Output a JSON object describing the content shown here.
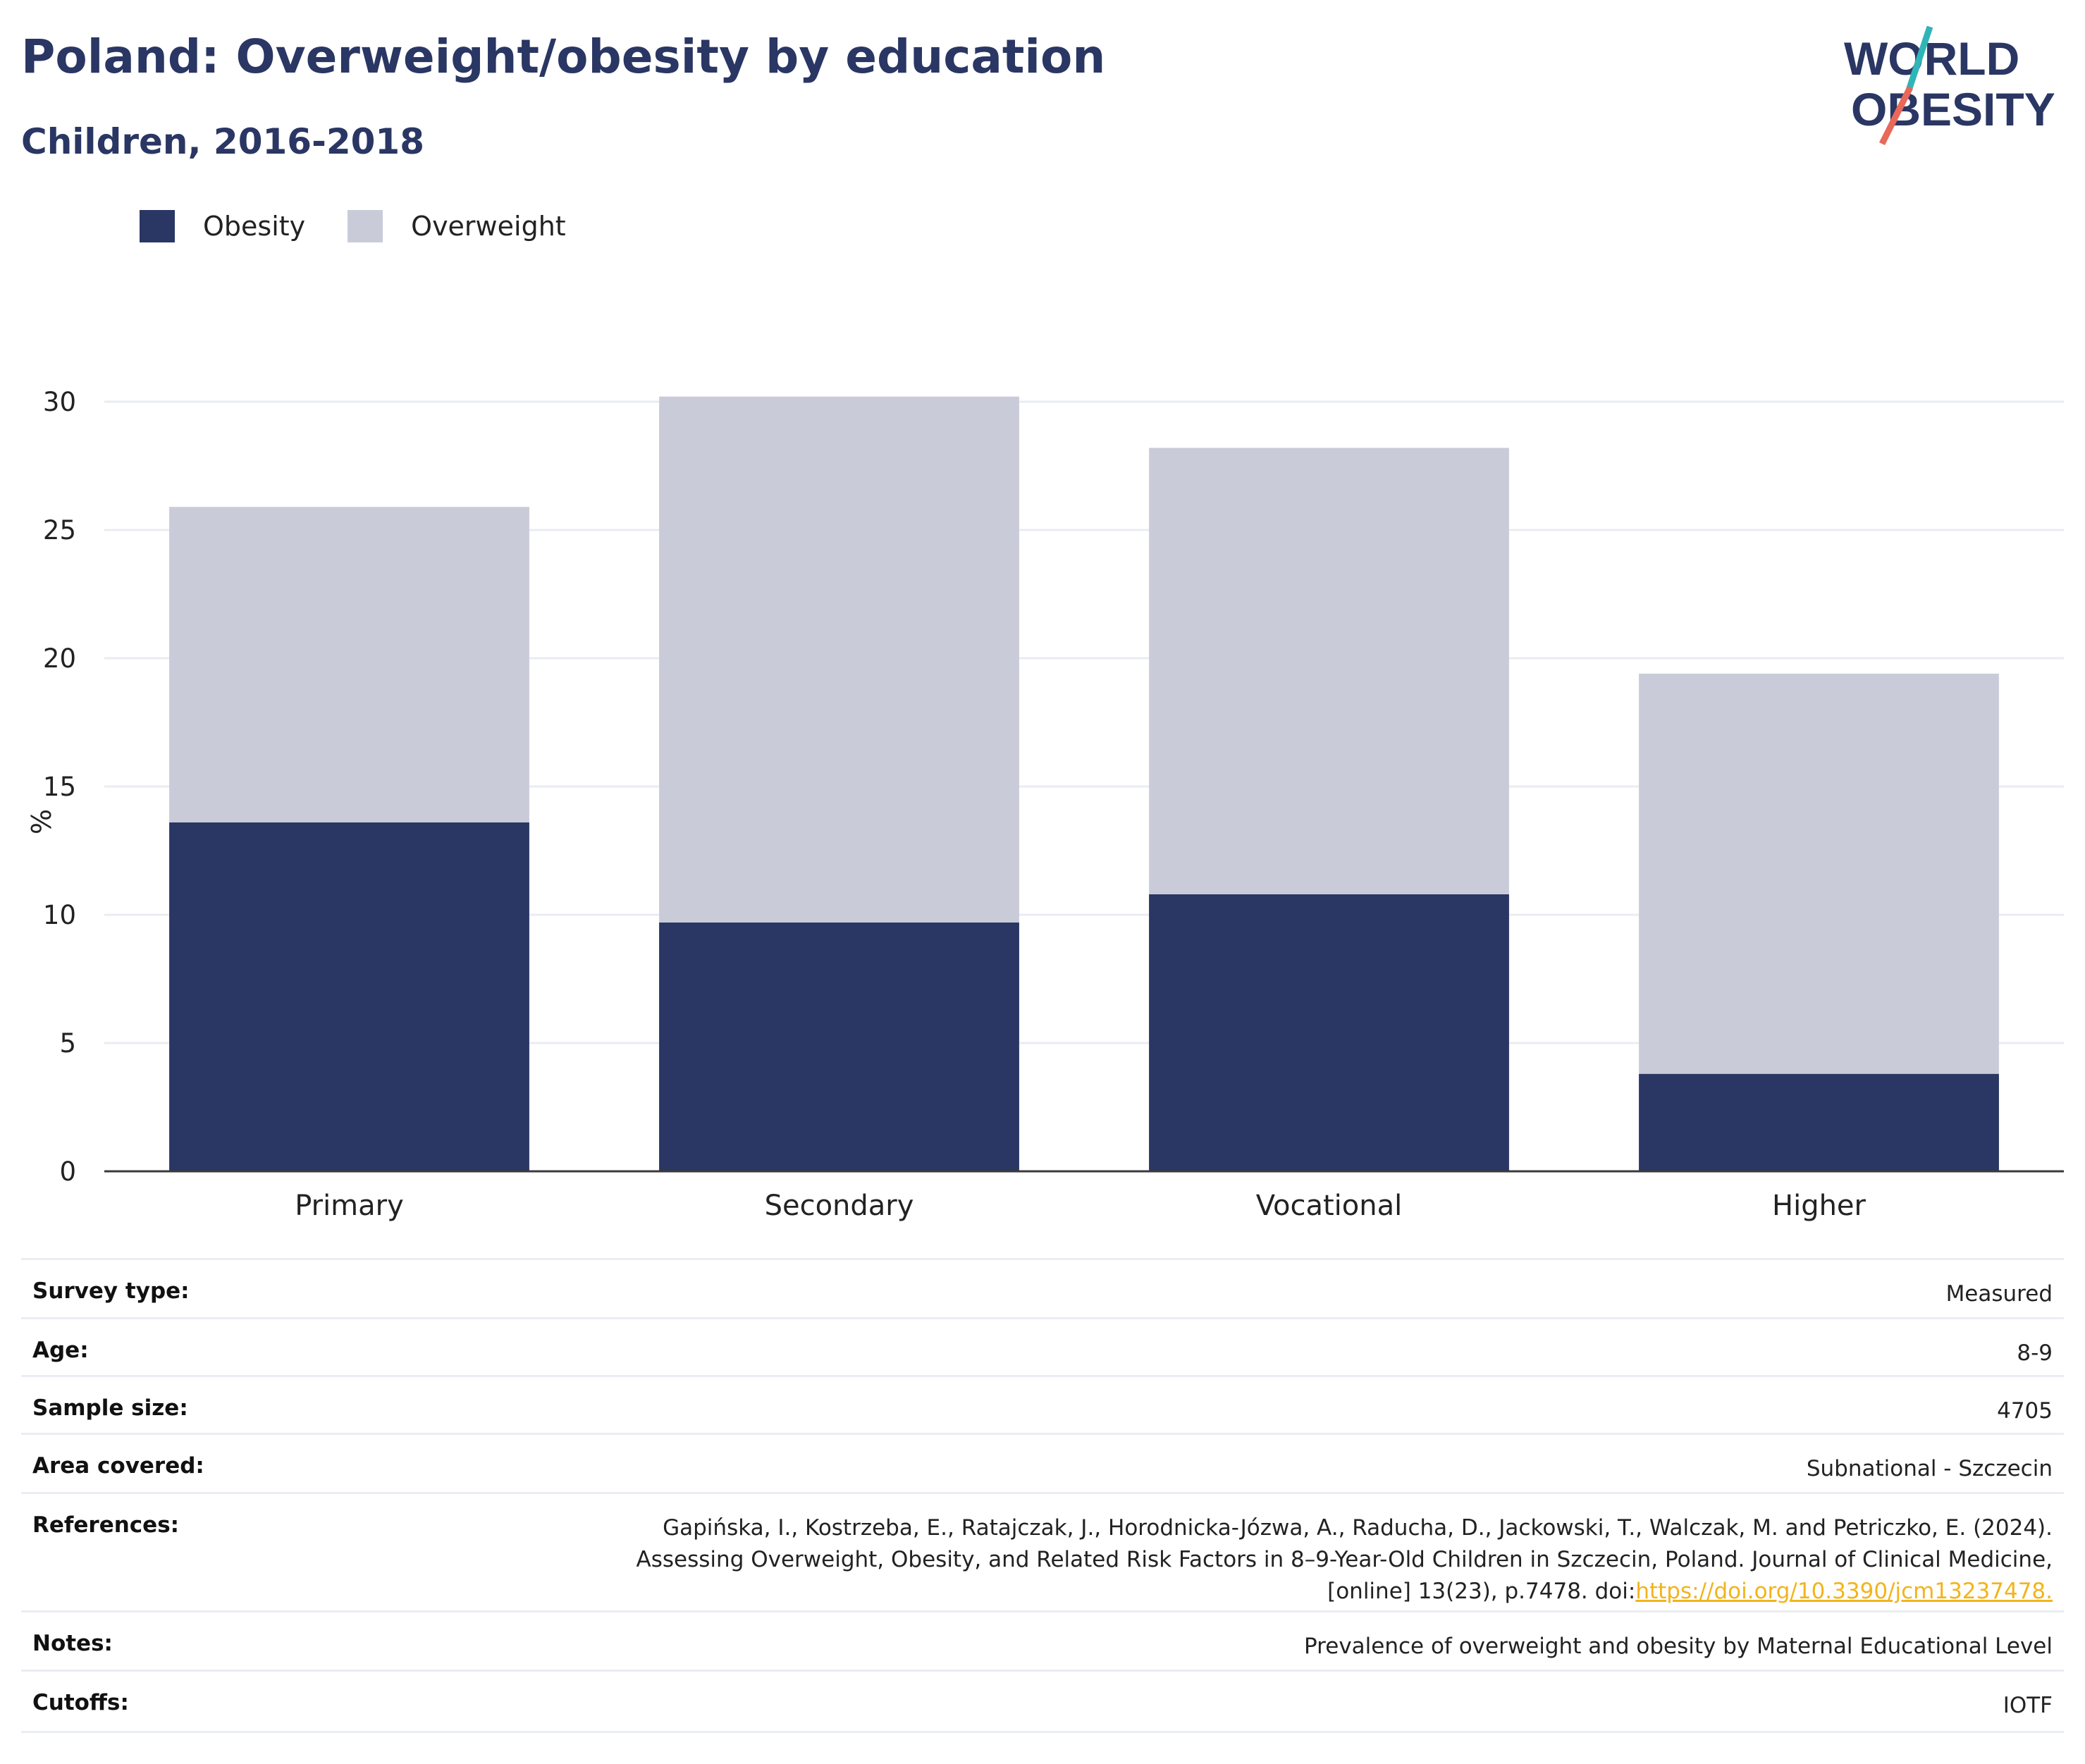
{
  "header": {
    "title": "Poland: Overweight/obesity by education",
    "subtitle": "Children, 2016-2018"
  },
  "logo": {
    "line1": "WORLD",
    "line2": "OBESITY"
  },
  "colors": {
    "obesity": "#2a3663",
    "overweight": "#c9ccd8",
    "title": "#2a3663",
    "link": "#f2b41c",
    "logo_teal": "#2fb5b7",
    "logo_coral": "#e8685a"
  },
  "chart_data": {
    "type": "bar",
    "stacked": true,
    "categories": [
      "Primary",
      "Secondary",
      "Vocational",
      "Higher"
    ],
    "series": [
      {
        "name": "Obesity",
        "values": [
          13.6,
          9.7,
          10.8,
          3.8
        ]
      },
      {
        "name": "Overweight",
        "values": [
          12.3,
          20.5,
          17.4,
          15.6
        ]
      }
    ],
    "totals": [
      25.9,
      30.2,
      28.2,
      19.4
    ],
    "ylabel": "%",
    "ylim": [
      0,
      30
    ],
    "yticks": [
      0,
      5,
      10,
      15,
      20,
      25,
      30
    ],
    "grid": true,
    "legend": "top-left"
  },
  "info": {
    "rows": [
      {
        "label": "Survey type:",
        "value": "Measured"
      },
      {
        "label": "Age:",
        "value": "8-9"
      },
      {
        "label": "Sample size:",
        "value": "4705"
      },
      {
        "label": "Area covered:",
        "value": "Subnational - Szczecin"
      },
      {
        "label": "References:",
        "lines": [
          "Gapińska, I., Kostrzeba, E., Ratajczak, J., Horodnicka-Józwa, A., Raducha, D., Jackowski, T., Walczak, M. and Petriczko, E. (2024).",
          "Assessing Overweight, Obesity, and Related Risk Factors in 8–9-Year-Old Children in Szczecin, Poland. Journal of Clinical Medicine,"
        ],
        "last_line_text": "[online] 13(23), p.7478. doi:",
        "link": "https://doi.org/10.3390/jcm13237478."
      },
      {
        "label": "Notes:",
        "value": "Prevalence of overweight and obesity by Maternal Educational Level"
      },
      {
        "label": "Cutoffs:",
        "value": "IOTF"
      }
    ]
  }
}
